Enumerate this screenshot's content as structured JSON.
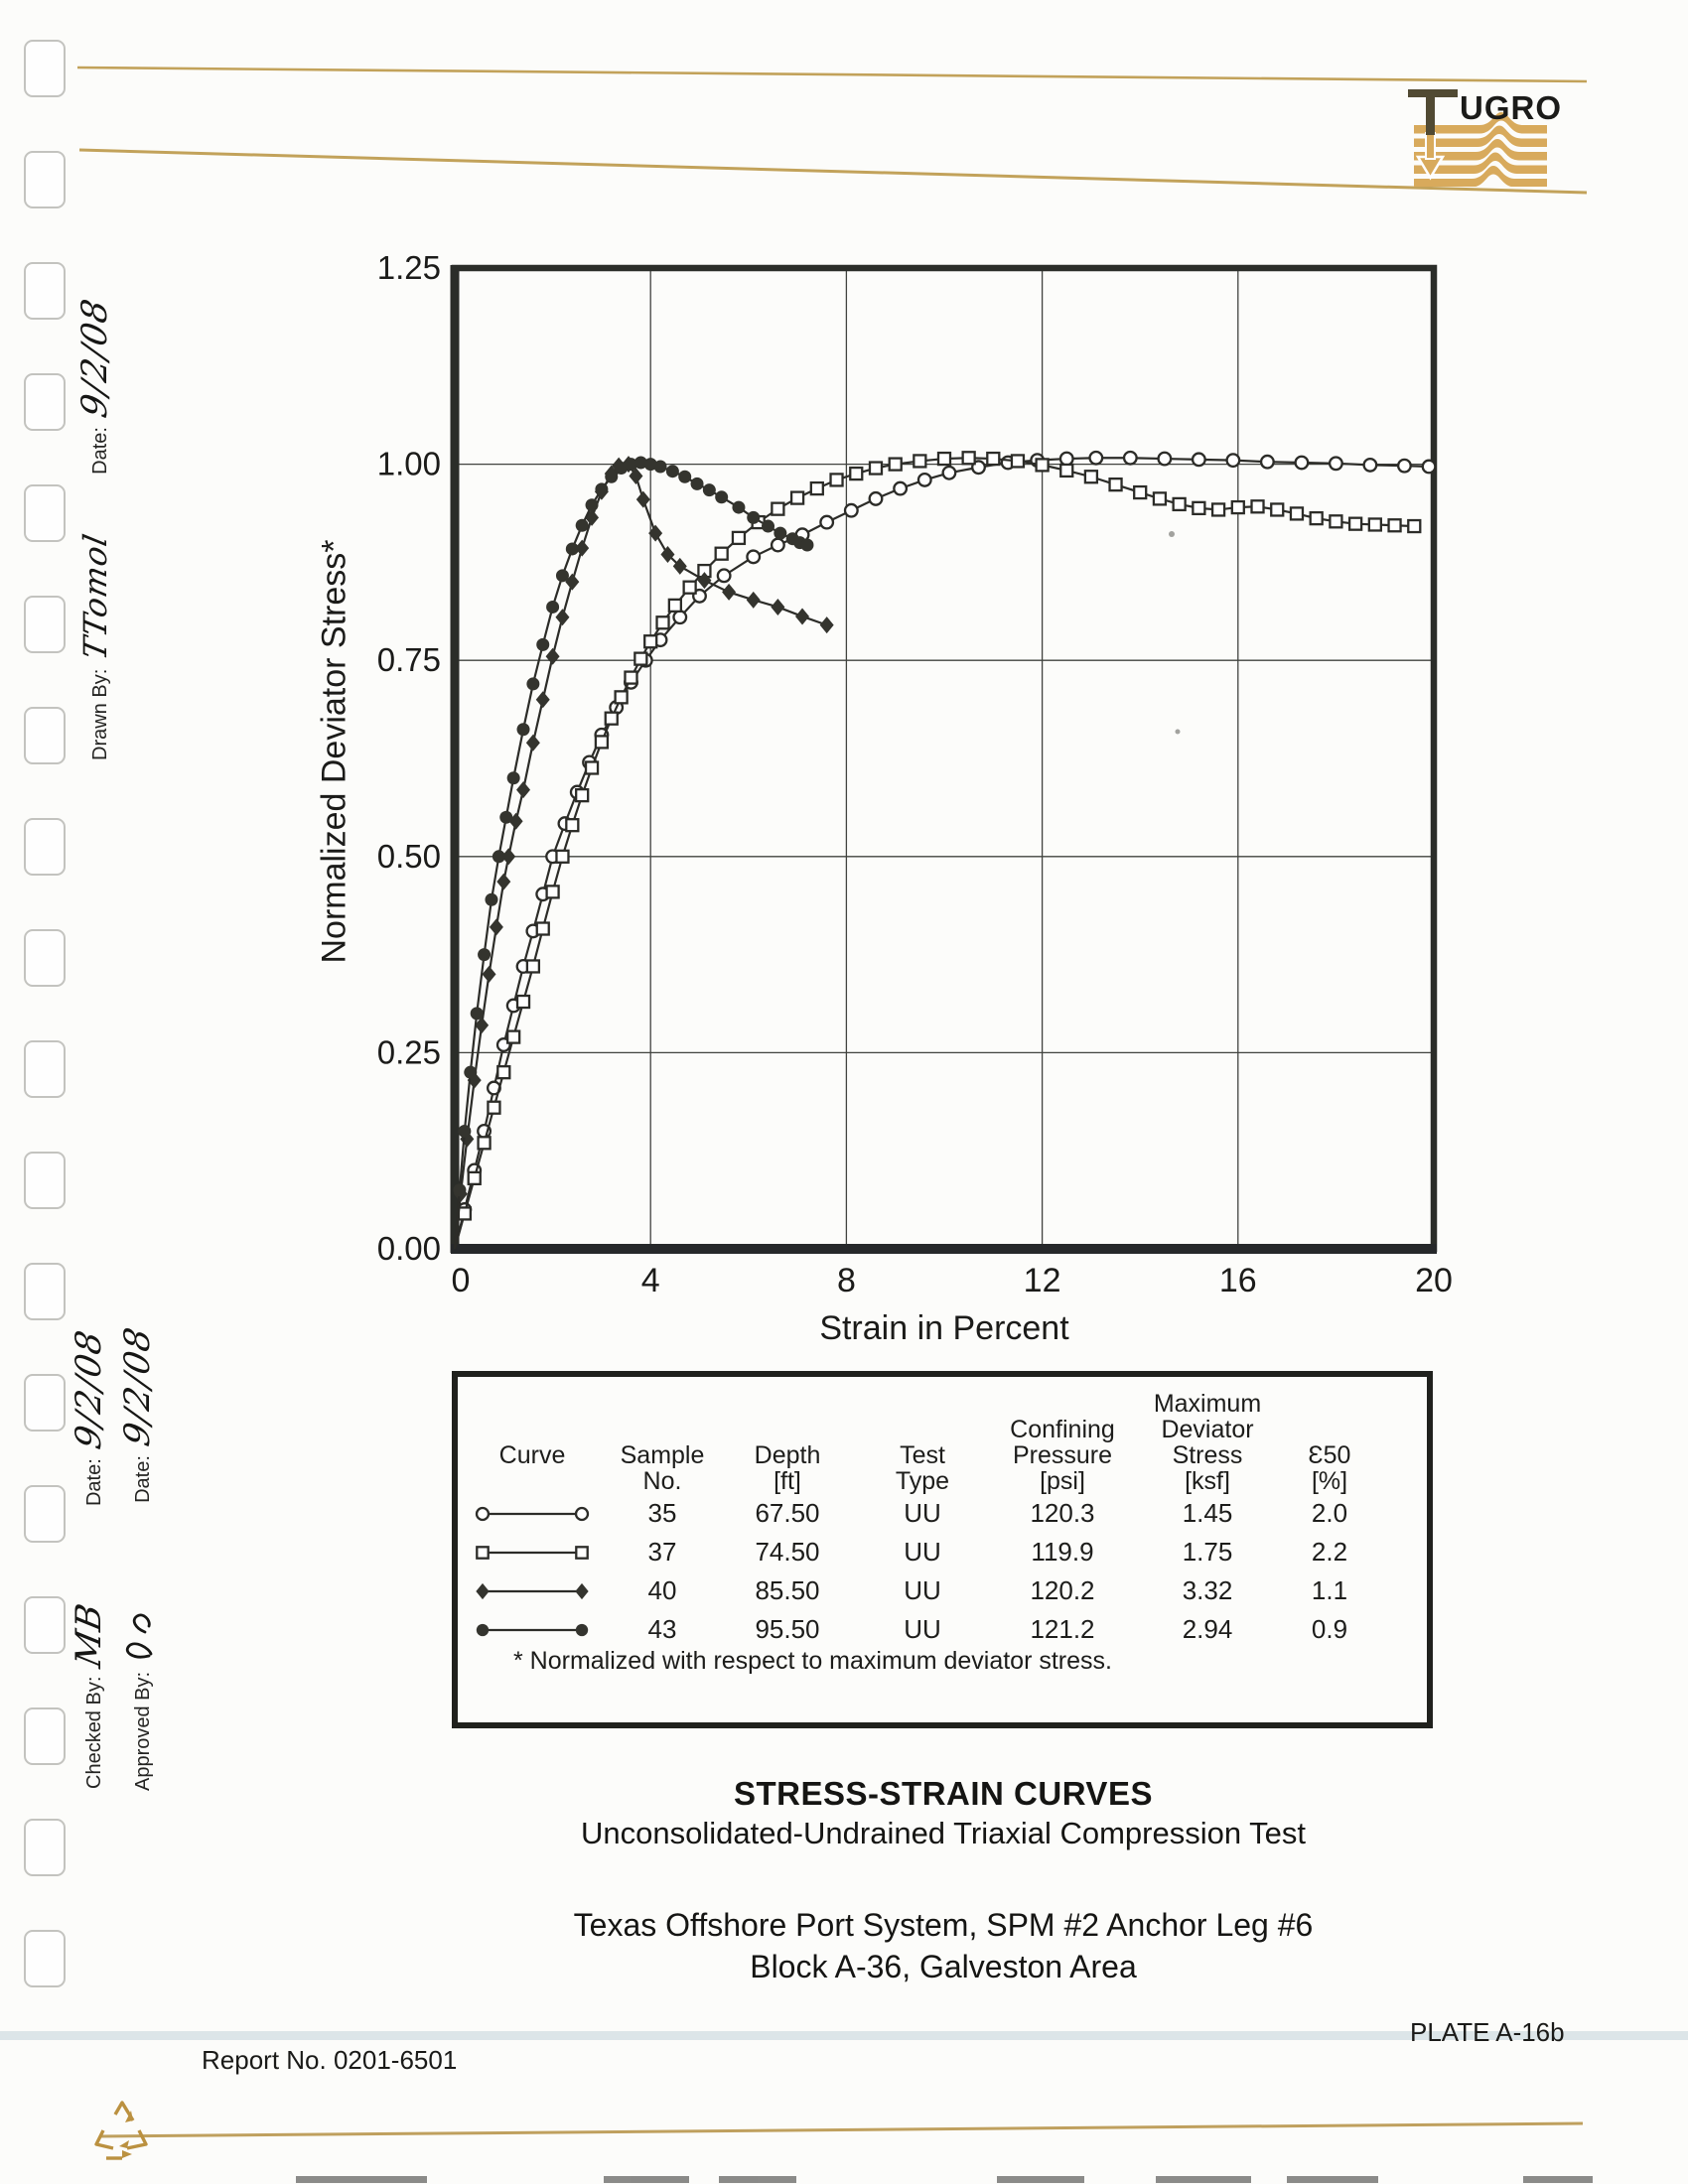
{
  "header": {
    "logo_text": "FUGRO",
    "accent_gold": "#c2a25a",
    "logo_tan": "#d8aa5c",
    "logo_dark": "#514a33"
  },
  "margin": {
    "drawn_by_label": "Drawn By:",
    "drawn_by_value": "TTomol",
    "drawn_date_label": "Date:",
    "drawn_date_value": "9/2/08",
    "checked_by_label": "Checked By:",
    "checked_by_value": "MB",
    "checked_date_label": "Date:",
    "checked_date_value": "9/2/08",
    "approved_by_label": "Approved By:",
    "approved_by_signature": "illegible initials",
    "approved_date_label": "Date:",
    "approved_date_value": "9/2/08"
  },
  "chart_data": {
    "type": "line",
    "title": "",
    "xlabel": "Strain in Percent",
    "ylabel": "Normalized Deviator Stress*",
    "xlim": [
      0,
      20
    ],
    "ylim": [
      0,
      1.25
    ],
    "xticks": [
      0,
      4,
      8,
      12,
      16,
      20
    ],
    "xtick_labels": [
      "0",
      "4",
      "8",
      "12",
      "16",
      "20"
    ],
    "yticks": [
      0,
      0.25,
      0.5,
      0.75,
      1.0,
      1.25
    ],
    "ytick_labels": [
      "0.00",
      "0.25",
      "0.50",
      "0.75",
      "1.00",
      "1.25"
    ],
    "grid": true,
    "legend_position": "table-below",
    "ink_color": "#2c2c28",
    "series": [
      {
        "name": "Sample 35",
        "marker": "open-circle",
        "points": [
          [
            0,
            0
          ],
          [
            0.2,
            0.05
          ],
          [
            0.4,
            0.1
          ],
          [
            0.6,
            0.15
          ],
          [
            0.8,
            0.205
          ],
          [
            1.0,
            0.26
          ],
          [
            1.2,
            0.31
          ],
          [
            1.4,
            0.36
          ],
          [
            1.6,
            0.405
          ],
          [
            1.8,
            0.452
          ],
          [
            2.0,
            0.5
          ],
          [
            2.25,
            0.542
          ],
          [
            2.5,
            0.582
          ],
          [
            2.75,
            0.62
          ],
          [
            3.0,
            0.655
          ],
          [
            3.3,
            0.69
          ],
          [
            3.6,
            0.722
          ],
          [
            3.9,
            0.75
          ],
          [
            4.2,
            0.776
          ],
          [
            4.6,
            0.805
          ],
          [
            5.0,
            0.832
          ],
          [
            5.5,
            0.858
          ],
          [
            6.1,
            0.882
          ],
          [
            6.6,
            0.897
          ],
          [
            7.1,
            0.91
          ],
          [
            7.6,
            0.926
          ],
          [
            8.1,
            0.941
          ],
          [
            8.6,
            0.956
          ],
          [
            9.1,
            0.969
          ],
          [
            9.6,
            0.98
          ],
          [
            10.1,
            0.989
          ],
          [
            10.7,
            0.996
          ],
          [
            11.3,
            1.002
          ],
          [
            11.9,
            1.005
          ],
          [
            12.5,
            1.007
          ],
          [
            13.1,
            1.008
          ],
          [
            13.8,
            1.008
          ],
          [
            14.5,
            1.007
          ],
          [
            15.2,
            1.006
          ],
          [
            15.9,
            1.005
          ],
          [
            16.6,
            1.003
          ],
          [
            17.3,
            1.002
          ],
          [
            18.0,
            1.001
          ],
          [
            18.7,
            0.999
          ],
          [
            19.4,
            0.998
          ],
          [
            19.9,
            0.997
          ]
        ]
      },
      {
        "name": "Sample 37",
        "marker": "open-square",
        "points": [
          [
            0,
            0
          ],
          [
            0.2,
            0.045
          ],
          [
            0.4,
            0.09
          ],
          [
            0.6,
            0.135
          ],
          [
            0.8,
            0.18
          ],
          [
            1.0,
            0.225
          ],
          [
            1.2,
            0.27
          ],
          [
            1.4,
            0.315
          ],
          [
            1.6,
            0.36
          ],
          [
            1.8,
            0.408
          ],
          [
            2.0,
            0.455
          ],
          [
            2.2,
            0.5
          ],
          [
            2.4,
            0.54
          ],
          [
            2.6,
            0.578
          ],
          [
            2.8,
            0.613
          ],
          [
            3.0,
            0.646
          ],
          [
            3.2,
            0.676
          ],
          [
            3.4,
            0.703
          ],
          [
            3.6,
            0.728
          ],
          [
            3.8,
            0.752
          ],
          [
            4.0,
            0.774
          ],
          [
            4.25,
            0.798
          ],
          [
            4.5,
            0.82
          ],
          [
            4.8,
            0.843
          ],
          [
            5.1,
            0.864
          ],
          [
            5.45,
            0.886
          ],
          [
            5.8,
            0.906
          ],
          [
            6.2,
            0.926
          ],
          [
            6.6,
            0.943
          ],
          [
            7.0,
            0.957
          ],
          [
            7.4,
            0.969
          ],
          [
            7.8,
            0.98
          ],
          [
            8.2,
            0.988
          ],
          [
            8.6,
            0.995
          ],
          [
            9.0,
            1.0
          ],
          [
            9.5,
            1.004
          ],
          [
            10.0,
            1.007
          ],
          [
            10.5,
            1.008
          ],
          [
            11.0,
            1.007
          ],
          [
            11.5,
            1.004
          ],
          [
            12.0,
            0.999
          ],
          [
            12.5,
            0.992
          ],
          [
            13.0,
            0.984
          ],
          [
            13.5,
            0.974
          ],
          [
            14.0,
            0.964
          ],
          [
            14.4,
            0.956
          ],
          [
            14.8,
            0.949
          ],
          [
            15.2,
            0.944
          ],
          [
            15.6,
            0.942
          ],
          [
            16.0,
            0.945
          ],
          [
            16.4,
            0.946
          ],
          [
            16.8,
            0.942
          ],
          [
            17.2,
            0.937
          ],
          [
            17.6,
            0.931
          ],
          [
            18.0,
            0.927
          ],
          [
            18.4,
            0.924
          ],
          [
            18.8,
            0.923
          ],
          [
            19.2,
            0.922
          ],
          [
            19.6,
            0.921
          ]
        ]
      },
      {
        "name": "Sample 40",
        "marker": "filled-diamond",
        "points": [
          [
            0,
            0
          ],
          [
            0.12,
            0.07
          ],
          [
            0.25,
            0.14
          ],
          [
            0.4,
            0.215
          ],
          [
            0.55,
            0.285
          ],
          [
            0.7,
            0.35
          ],
          [
            0.85,
            0.41
          ],
          [
            1.0,
            0.468
          ],
          [
            1.1,
            0.5
          ],
          [
            1.25,
            0.545
          ],
          [
            1.4,
            0.585
          ],
          [
            1.6,
            0.645
          ],
          [
            1.8,
            0.7
          ],
          [
            2.0,
            0.755
          ],
          [
            2.2,
            0.805
          ],
          [
            2.4,
            0.85
          ],
          [
            2.6,
            0.893
          ],
          [
            2.8,
            0.932
          ],
          [
            3.0,
            0.965
          ],
          [
            3.2,
            0.988
          ],
          [
            3.35,
            0.998
          ],
          [
            3.55,
            1.0
          ],
          [
            3.7,
            0.985
          ],
          [
            3.85,
            0.955
          ],
          [
            4.1,
            0.912
          ],
          [
            4.35,
            0.885
          ],
          [
            4.6,
            0.87
          ],
          [
            5.1,
            0.852
          ],
          [
            5.6,
            0.837
          ],
          [
            6.1,
            0.827
          ],
          [
            6.6,
            0.818
          ],
          [
            7.1,
            0.806
          ],
          [
            7.6,
            0.795
          ]
        ]
      },
      {
        "name": "Sample 43",
        "marker": "filled-circle",
        "points": [
          [
            0,
            0
          ],
          [
            0.1,
            0.075
          ],
          [
            0.2,
            0.15
          ],
          [
            0.32,
            0.225
          ],
          [
            0.45,
            0.3
          ],
          [
            0.6,
            0.375
          ],
          [
            0.75,
            0.445
          ],
          [
            0.9,
            0.5
          ],
          [
            1.05,
            0.55
          ],
          [
            1.2,
            0.6
          ],
          [
            1.4,
            0.662
          ],
          [
            1.6,
            0.72
          ],
          [
            1.8,
            0.77
          ],
          [
            2.0,
            0.818
          ],
          [
            2.2,
            0.858
          ],
          [
            2.4,
            0.892
          ],
          [
            2.6,
            0.922
          ],
          [
            2.8,
            0.948
          ],
          [
            3.0,
            0.968
          ],
          [
            3.2,
            0.984
          ],
          [
            3.4,
            0.995
          ],
          [
            3.6,
            1.0
          ],
          [
            3.8,
            1.002
          ],
          [
            4.0,
            1.0
          ],
          [
            4.2,
            0.997
          ],
          [
            4.45,
            0.991
          ],
          [
            4.7,
            0.984
          ],
          [
            4.95,
            0.975
          ],
          [
            5.2,
            0.967
          ],
          [
            5.45,
            0.958
          ],
          [
            5.8,
            0.945
          ],
          [
            6.1,
            0.932
          ],
          [
            6.4,
            0.921
          ],
          [
            6.65,
            0.912
          ],
          [
            6.9,
            0.905
          ],
          [
            7.05,
            0.9
          ],
          [
            7.2,
            0.897
          ]
        ]
      }
    ]
  },
  "legend_table": {
    "headers": [
      [
        "Curve",
        " "
      ],
      [
        "Sample",
        "No."
      ],
      [
        "Depth",
        "[ft]"
      ],
      [
        "Test",
        "Type"
      ],
      [
        "Confining",
        "Pressure",
        "[psi]"
      ],
      [
        "Maximum",
        "Deviator",
        "Stress",
        "[ksf]"
      ],
      [
        "Ɛ50",
        "[%]"
      ]
    ],
    "rows": [
      {
        "marker": "open-circle",
        "values": [
          "35",
          "67.50",
          "UU",
          "120.3",
          "1.45",
          "2.0"
        ]
      },
      {
        "marker": "open-square",
        "values": [
          "37",
          "74.50",
          "UU",
          "119.9",
          "1.75",
          "2.2"
        ]
      },
      {
        "marker": "filled-diamond",
        "values": [
          "40",
          "85.50",
          "UU",
          "120.2",
          "3.32",
          "1.1"
        ]
      },
      {
        "marker": "filled-circle",
        "values": [
          "43",
          "95.50",
          "UU",
          "121.2",
          "2.94",
          "0.9"
        ]
      }
    ],
    "footnote": "* Normalized with respect to maximum deviator stress."
  },
  "titles": {
    "line1": "STRESS-STRAIN CURVES",
    "line2": "Unconsolidated-Undrained Triaxial Compression Test",
    "line3": "Texas Offshore Port System, SPM #2 Anchor Leg #6",
    "line4": "Block A-36, Galveston Area"
  },
  "footer": {
    "report_no": "Report No. 0201-6501",
    "plate_no": "PLATE A-16b"
  }
}
